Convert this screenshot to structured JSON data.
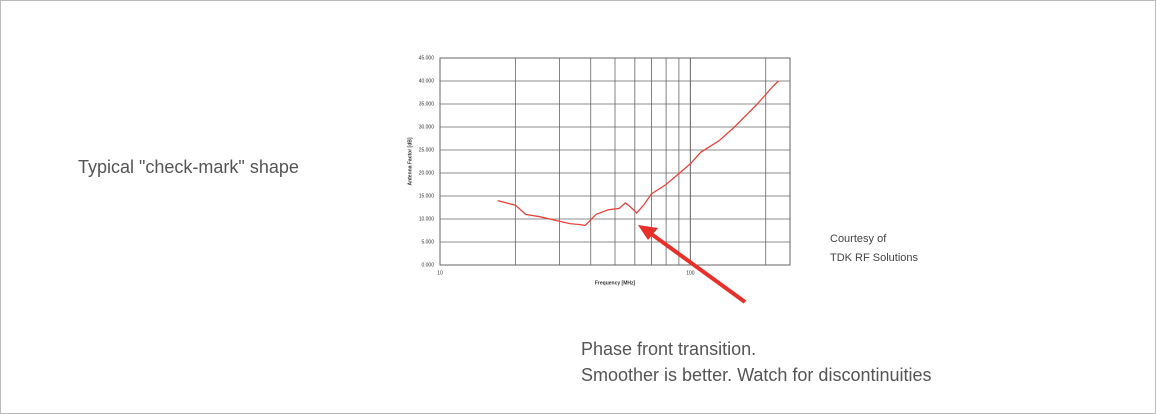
{
  "slide_text": {
    "shape": "Typical \"check-mark\" shape",
    "courtesy": [
      "Courtesy of",
      "TDK RF Solutions"
    ],
    "transition": [
      "Phase front transition.",
      "Smoother is better. Watch for discontinuities"
    ]
  },
  "chart_data": {
    "type": "line",
    "xlabel": "Frequency [MHz]",
    "ylabel": "Antenna Factor [dB]",
    "xscale": "log",
    "xlim": [
      10,
      250
    ],
    "xticks": [
      10,
      100
    ],
    "xminor": [
      20,
      30,
      40,
      50,
      60,
      70,
      80,
      90,
      200
    ],
    "ylim": [
      0,
      45
    ],
    "yticks": [
      {
        "value": 0,
        "label": "0.000"
      },
      {
        "value": 5,
        "label": "5.000"
      },
      {
        "value": 10,
        "label": "10.000"
      },
      {
        "value": 15,
        "label": "15.000"
      },
      {
        "value": 20,
        "label": "20.000"
      },
      {
        "value": 25,
        "label": "25.000"
      },
      {
        "value": 30,
        "label": "30.000"
      },
      {
        "value": 35,
        "label": "35.000"
      },
      {
        "value": 40,
        "label": "40.000"
      },
      {
        "value": 45,
        "label": "45.000"
      }
    ],
    "grid": true,
    "x": [
      17,
      20,
      22,
      25,
      30,
      33,
      36,
      38,
      42,
      47,
      52,
      55,
      58,
      61,
      65,
      70,
      80,
      100,
      110,
      130,
      150,
      170,
      185,
      215,
      225
    ],
    "series": [
      {
        "name": "Antenna Factor",
        "color": "#e8453c",
        "values": [
          14,
          13,
          11,
          10.5,
          9.5,
          9,
          8.8,
          8.6,
          11,
          12,
          12.3,
          13.5,
          12.5,
          11.3,
          13,
          15.5,
          17.5,
          22,
          24.5,
          27,
          30,
          33,
          35,
          39,
          40
        ]
      }
    ]
  }
}
